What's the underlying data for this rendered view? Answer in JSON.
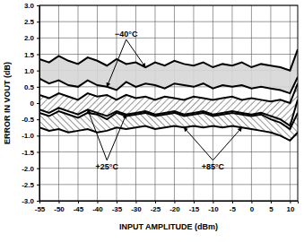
{
  "chart_data": {
    "type": "line",
    "x_label": "INPUT AMPLITUDE (dBm)",
    "y_label": "ERROR IN VOUT (dB)",
    "x": [
      -55,
      -52.5,
      -50,
      -47.5,
      -45,
      -42.5,
      -40,
      -37.5,
      -35,
      -32.5,
      -30,
      -27.5,
      -25,
      -22.5,
      -20,
      -17.5,
      -15,
      -12.5,
      -10,
      -7.5,
      -5,
      -2.5,
      0,
      2.5,
      5,
      7.5,
      10,
      12
    ],
    "xlim": [
      -55,
      12
    ],
    "xticks": [
      -55,
      -50,
      -45,
      -40,
      -35,
      -30,
      -25,
      -20,
      -15,
      -10,
      -5,
      0,
      5,
      10
    ],
    "ylim": [
      -3,
      3
    ],
    "yticks": [
      {
        "value": -3,
        "label": "-3.0"
      },
      {
        "value": -2.5,
        "label": "-2.5"
      },
      {
        "value": -2,
        "label": "-2.0"
      },
      {
        "value": -1.5,
        "label": "-1.5"
      },
      {
        "value": -1,
        "label": "-1.0"
      },
      {
        "value": -0.5,
        "label": "-0.5"
      },
      0,
      {
        "value": 0.5,
        "label": "0.5"
      },
      {
        "value": 1,
        "label": "1.0"
      },
      {
        "value": 1.5,
        "label": "1.5"
      },
      {
        "value": 2,
        "label": "2.0"
      },
      {
        "value": 2.5,
        "label": "2.5"
      },
      {
        "value": 3,
        "label": "3.0"
      }
    ],
    "grid": true,
    "series": [
      {
        "name": "−40°C",
        "type": "band",
        "color": "#d6d6d6",
        "values": [
          1.35,
          1.25,
          1.45,
          1.3,
          1.2,
          1.4,
          1.3,
          1.15,
          1.35,
          1.2,
          1.25,
          1.1,
          1.25,
          1.15,
          1.3,
          1.2,
          1.15,
          1.25,
          1.1,
          1.2,
          1.15,
          1.25,
          1.1,
          1.2,
          1.15,
          1.1,
          1.0,
          1.65
        ],
        "lower": [
          0.75,
          0.6,
          0.7,
          0.55,
          0.5,
          0.7,
          0.55,
          0.5,
          0.4,
          0.65,
          0.5,
          0.6,
          0.55,
          0.45,
          0.6,
          0.55,
          0.5,
          0.6,
          0.45,
          0.55,
          0.5,
          0.55,
          0.45,
          0.5,
          0.45,
          0.4,
          0.3,
          0.8
        ]
      },
      {
        "name": "+25°C",
        "type": "band",
        "color": "#000000",
        "values": [
          0.25,
          0.15,
          0.3,
          0.2,
          0.1,
          0.3,
          0.2,
          0.25,
          0.1,
          0.25,
          0.15,
          0.2,
          0.1,
          0.2,
          0.15,
          0.1,
          0.2,
          0.15,
          0.1,
          0.15,
          0.2,
          0.1,
          0.15,
          0.1,
          0.05,
          0.1,
          0.0,
          0.6
        ],
        "lower": [
          -0.2,
          -0.3,
          -0.15,
          -0.25,
          -0.35,
          -0.2,
          -0.3,
          -0.4,
          -0.25,
          -0.35,
          -0.3,
          -0.25,
          -0.35,
          -0.3,
          -0.25,
          -0.35,
          -0.3,
          -0.25,
          -0.35,
          -0.3,
          -0.25,
          -0.3,
          -0.35,
          -0.3,
          -0.4,
          -0.5,
          -0.7,
          0.1
        ]
      },
      {
        "name": "+85°C",
        "type": "band",
        "color": "#000000",
        "values": [
          -0.3,
          -0.4,
          -0.25,
          -0.35,
          -0.45,
          -0.3,
          -0.35,
          -0.5,
          -0.3,
          -0.4,
          -0.35,
          -0.3,
          -0.4,
          -0.35,
          -0.3,
          -0.4,
          -0.35,
          -0.3,
          -0.4,
          -0.35,
          -0.3,
          -0.35,
          -0.4,
          -0.35,
          -0.5,
          -0.6,
          -0.8,
          -0.3
        ],
        "lower": [
          -0.75,
          -0.85,
          -0.8,
          -0.9,
          -0.85,
          -0.8,
          -0.9,
          -0.85,
          -0.75,
          -0.8,
          -0.75,
          -0.7,
          -0.8,
          -0.75,
          -0.7,
          -0.75,
          -0.7,
          -0.75,
          -0.7,
          -0.75,
          -0.7,
          -0.75,
          -0.8,
          -0.85,
          -0.9,
          -1.0,
          -1.15,
          -0.9
        ]
      }
    ]
  }
}
